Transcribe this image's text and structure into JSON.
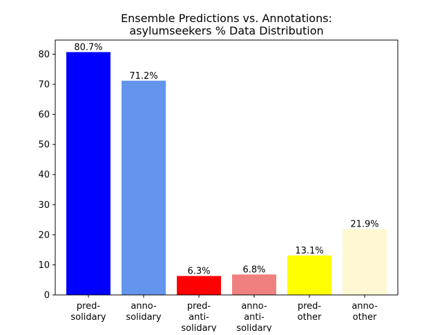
{
  "chart_data": {
    "type": "bar",
    "title_line1": "Ensemble Predictions vs. Annotations:",
    "title_line2": "asylumseekers % Data Distribution",
    "xlabel": "",
    "ylabel": "",
    "ylim": [
      0,
      84.7
    ],
    "yticks": [
      0,
      10,
      20,
      30,
      40,
      50,
      60,
      70,
      80
    ],
    "grid": false,
    "categories": [
      [
        "pred-",
        "solidary"
      ],
      [
        "anno-",
        "solidary"
      ],
      [
        "pred-",
        "anti-",
        "solidary"
      ],
      [
        "anno-",
        "anti-",
        "solidary"
      ],
      [
        "pred-",
        "other"
      ],
      [
        "anno-",
        "other"
      ]
    ],
    "values": [
      80.7,
      71.2,
      6.3,
      6.8,
      13.1,
      21.9
    ],
    "data_labels": [
      "80.7%",
      "71.2%",
      "6.3%",
      "6.8%",
      "13.1%",
      "21.9%"
    ],
    "colors": [
      "#0000ff",
      "#6495ed",
      "#ff0000",
      "#f08080",
      "#ffff00",
      "#fff8d2"
    ]
  }
}
